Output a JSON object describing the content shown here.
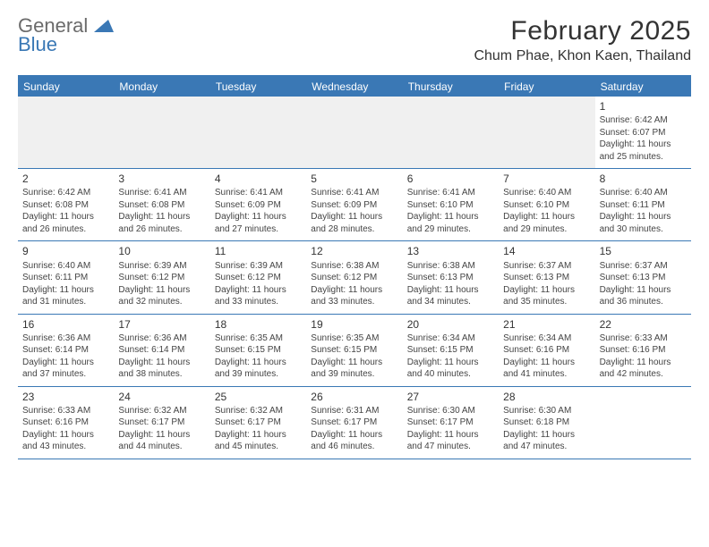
{
  "logo": {
    "text1": "General",
    "text2": "Blue",
    "color1": "#6b6b6b",
    "color2": "#3a78b5",
    "tri_color": "#3a78b5"
  },
  "title": "February 2025",
  "location": "Chum Phae, Khon Kaen, Thailand",
  "accent_color": "#3a78b5",
  "background_color": "#ffffff",
  "alt_row_color": "#f0f0f0",
  "text_color": "#333333",
  "day_font_size": 12,
  "cell_font_size": 10,
  "daynames": [
    "Sunday",
    "Monday",
    "Tuesday",
    "Wednesday",
    "Thursday",
    "Friday",
    "Saturday"
  ],
  "first_weekday_index": 6,
  "days": [
    {
      "n": 1,
      "sunrise": "6:42 AM",
      "sunset": "6:07 PM",
      "daylight": "11 hours and 25 minutes."
    },
    {
      "n": 2,
      "sunrise": "6:42 AM",
      "sunset": "6:08 PM",
      "daylight": "11 hours and 26 minutes."
    },
    {
      "n": 3,
      "sunrise": "6:41 AM",
      "sunset": "6:08 PM",
      "daylight": "11 hours and 26 minutes."
    },
    {
      "n": 4,
      "sunrise": "6:41 AM",
      "sunset": "6:09 PM",
      "daylight": "11 hours and 27 minutes."
    },
    {
      "n": 5,
      "sunrise": "6:41 AM",
      "sunset": "6:09 PM",
      "daylight": "11 hours and 28 minutes."
    },
    {
      "n": 6,
      "sunrise": "6:41 AM",
      "sunset": "6:10 PM",
      "daylight": "11 hours and 29 minutes."
    },
    {
      "n": 7,
      "sunrise": "6:40 AM",
      "sunset": "6:10 PM",
      "daylight": "11 hours and 29 minutes."
    },
    {
      "n": 8,
      "sunrise": "6:40 AM",
      "sunset": "6:11 PM",
      "daylight": "11 hours and 30 minutes."
    },
    {
      "n": 9,
      "sunrise": "6:40 AM",
      "sunset": "6:11 PM",
      "daylight": "11 hours and 31 minutes."
    },
    {
      "n": 10,
      "sunrise": "6:39 AM",
      "sunset": "6:12 PM",
      "daylight": "11 hours and 32 minutes."
    },
    {
      "n": 11,
      "sunrise": "6:39 AM",
      "sunset": "6:12 PM",
      "daylight": "11 hours and 33 minutes."
    },
    {
      "n": 12,
      "sunrise": "6:38 AM",
      "sunset": "6:12 PM",
      "daylight": "11 hours and 33 minutes."
    },
    {
      "n": 13,
      "sunrise": "6:38 AM",
      "sunset": "6:13 PM",
      "daylight": "11 hours and 34 minutes."
    },
    {
      "n": 14,
      "sunrise": "6:37 AM",
      "sunset": "6:13 PM",
      "daylight": "11 hours and 35 minutes."
    },
    {
      "n": 15,
      "sunrise": "6:37 AM",
      "sunset": "6:13 PM",
      "daylight": "11 hours and 36 minutes."
    },
    {
      "n": 16,
      "sunrise": "6:36 AM",
      "sunset": "6:14 PM",
      "daylight": "11 hours and 37 minutes."
    },
    {
      "n": 17,
      "sunrise": "6:36 AM",
      "sunset": "6:14 PM",
      "daylight": "11 hours and 38 minutes."
    },
    {
      "n": 18,
      "sunrise": "6:35 AM",
      "sunset": "6:15 PM",
      "daylight": "11 hours and 39 minutes."
    },
    {
      "n": 19,
      "sunrise": "6:35 AM",
      "sunset": "6:15 PM",
      "daylight": "11 hours and 39 minutes."
    },
    {
      "n": 20,
      "sunrise": "6:34 AM",
      "sunset": "6:15 PM",
      "daylight": "11 hours and 40 minutes."
    },
    {
      "n": 21,
      "sunrise": "6:34 AM",
      "sunset": "6:16 PM",
      "daylight": "11 hours and 41 minutes."
    },
    {
      "n": 22,
      "sunrise": "6:33 AM",
      "sunset": "6:16 PM",
      "daylight": "11 hours and 42 minutes."
    },
    {
      "n": 23,
      "sunrise": "6:33 AM",
      "sunset": "6:16 PM",
      "daylight": "11 hours and 43 minutes."
    },
    {
      "n": 24,
      "sunrise": "6:32 AM",
      "sunset": "6:17 PM",
      "daylight": "11 hours and 44 minutes."
    },
    {
      "n": 25,
      "sunrise": "6:32 AM",
      "sunset": "6:17 PM",
      "daylight": "11 hours and 45 minutes."
    },
    {
      "n": 26,
      "sunrise": "6:31 AM",
      "sunset": "6:17 PM",
      "daylight": "11 hours and 46 minutes."
    },
    {
      "n": 27,
      "sunrise": "6:30 AM",
      "sunset": "6:17 PM",
      "daylight": "11 hours and 47 minutes."
    },
    {
      "n": 28,
      "sunrise": "6:30 AM",
      "sunset": "6:18 PM",
      "daylight": "11 hours and 47 minutes."
    }
  ],
  "labels": {
    "sunrise": "Sunrise:",
    "sunset": "Sunset:",
    "daylight": "Daylight:"
  }
}
